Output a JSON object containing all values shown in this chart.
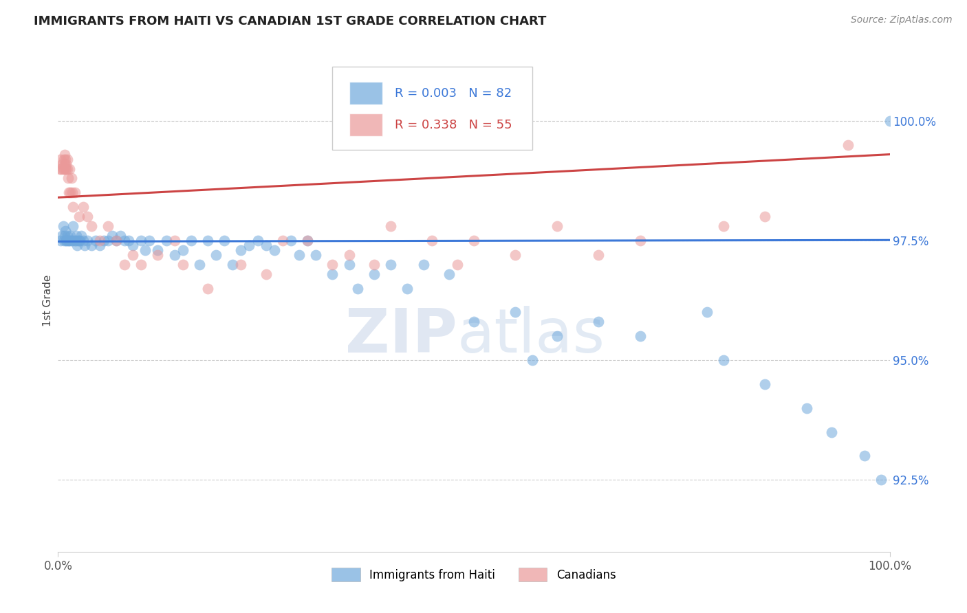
{
  "title": "IMMIGRANTS FROM HAITI VS CANADIAN 1ST GRADE CORRELATION CHART",
  "source_text": "Source: ZipAtlas.com",
  "ylabel": "1st Grade",
  "xlim": [
    0.0,
    100.0
  ],
  "ylim": [
    91.0,
    101.5
  ],
  "yticks": [
    92.5,
    95.0,
    97.5,
    100.0
  ],
  "ytick_labels": [
    "92.5%",
    "95.0%",
    "97.5%",
    "100.0%"
  ],
  "xticks": [
    0.0,
    100.0
  ],
  "xtick_labels": [
    "0.0%",
    "100.0%"
  ],
  "blue_R": 0.003,
  "blue_N": 82,
  "pink_R": 0.338,
  "pink_N": 55,
  "blue_color": "#6fa8dc",
  "pink_color": "#ea9999",
  "blue_line_color": "#3c78d8",
  "pink_line_color": "#cc4444",
  "legend_label_blue": "Immigrants from Haiti",
  "legend_label_pink": "Canadians",
  "watermark_zip": "ZIP",
  "watermark_atlas": "atlas",
  "background_color": "#ffffff",
  "blue_x": [
    0.3,
    0.5,
    0.6,
    0.7,
    0.8,
    0.9,
    1.0,
    1.0,
    1.1,
    1.2,
    1.3,
    1.4,
    1.5,
    1.6,
    1.7,
    1.8,
    2.0,
    2.1,
    2.2,
    2.3,
    2.4,
    2.5,
    2.6,
    2.8,
    3.0,
    3.2,
    3.5,
    4.0,
    4.5,
    5.0,
    5.5,
    6.0,
    6.5,
    7.0,
    7.5,
    8.0,
    8.5,
    9.0,
    10.0,
    10.5,
    11.0,
    12.0,
    13.0,
    14.0,
    15.0,
    16.0,
    17.0,
    18.0,
    19.0,
    20.0,
    21.0,
    22.0,
    23.0,
    24.0,
    25.0,
    26.0,
    28.0,
    29.0,
    30.0,
    31.0,
    33.0,
    35.0,
    36.0,
    38.0,
    40.0,
    42.0,
    44.0,
    47.0,
    50.0,
    55.0,
    57.0,
    60.0,
    65.0,
    70.0,
    78.0,
    80.0,
    85.0,
    90.0,
    93.0,
    97.0,
    99.0,
    100.0
  ],
  "blue_y": [
    97.5,
    97.6,
    97.8,
    97.5,
    97.6,
    97.7,
    97.5,
    97.5,
    97.6,
    97.5,
    97.5,
    97.5,
    97.6,
    97.5,
    97.5,
    97.8,
    97.5,
    97.5,
    97.6,
    97.4,
    97.5,
    97.5,
    97.5,
    97.6,
    97.5,
    97.4,
    97.5,
    97.4,
    97.5,
    97.4,
    97.5,
    97.5,
    97.6,
    97.5,
    97.6,
    97.5,
    97.5,
    97.4,
    97.5,
    97.3,
    97.5,
    97.3,
    97.5,
    97.2,
    97.3,
    97.5,
    97.0,
    97.5,
    97.2,
    97.5,
    97.0,
    97.3,
    97.4,
    97.5,
    97.4,
    97.3,
    97.5,
    97.2,
    97.5,
    97.2,
    96.8,
    97.0,
    96.5,
    96.8,
    97.0,
    96.5,
    97.0,
    96.8,
    95.8,
    96.0,
    95.0,
    95.5,
    95.8,
    95.5,
    96.0,
    95.0,
    94.5,
    94.0,
    93.5,
    93.0,
    92.5,
    100.0
  ],
  "pink_x": [
    0.2,
    0.3,
    0.4,
    0.5,
    0.6,
    0.7,
    0.7,
    0.8,
    0.8,
    0.9,
    0.9,
    1.0,
    1.0,
    1.1,
    1.1,
    1.2,
    1.3,
    1.4,
    1.5,
    1.6,
    1.7,
    1.8,
    2.0,
    2.5,
    3.0,
    3.5,
    4.0,
    5.0,
    6.0,
    7.0,
    8.0,
    9.0,
    10.0,
    12.0,
    14.0,
    15.0,
    18.0,
    22.0,
    25.0,
    27.0,
    30.0,
    33.0,
    35.0,
    38.0,
    40.0,
    45.0,
    48.0,
    50.0,
    55.0,
    60.0,
    65.0,
    70.0,
    80.0,
    85.0,
    95.0
  ],
  "pink_y": [
    99.0,
    99.2,
    99.0,
    99.1,
    99.0,
    99.2,
    99.0,
    99.3,
    99.1,
    99.0,
    99.2,
    99.0,
    99.1,
    99.0,
    99.2,
    98.8,
    98.5,
    99.0,
    98.5,
    98.8,
    98.5,
    98.2,
    98.5,
    98.0,
    98.2,
    98.0,
    97.8,
    97.5,
    97.8,
    97.5,
    97.0,
    97.2,
    97.0,
    97.2,
    97.5,
    97.0,
    96.5,
    97.0,
    96.8,
    97.5,
    97.5,
    97.0,
    97.2,
    97.0,
    97.8,
    97.5,
    97.0,
    97.5,
    97.2,
    97.8,
    97.2,
    97.5,
    97.8,
    98.0,
    99.5
  ],
  "blue_trend_x": [
    0.0,
    100.0
  ],
  "blue_trend_y": [
    97.48,
    97.51
  ],
  "pink_trend_x": [
    0.0,
    100.0
  ],
  "pink_trend_y": [
    98.4,
    99.3
  ]
}
